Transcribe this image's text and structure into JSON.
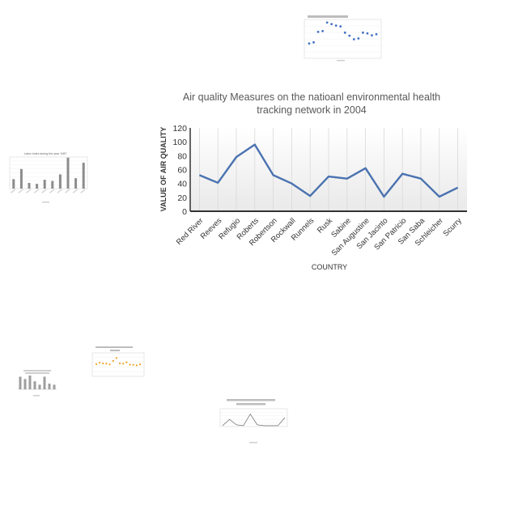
{
  "chart_data": [
    {
      "type": "line",
      "title": "Air quality Measures on the natioanl environmental health tracking network in 2004",
      "xlabel": "COUNTRY",
      "ylabel": "VALUE OF AIR QUALITY",
      "ylim": [
        0,
        120
      ],
      "yticks": [
        "0",
        "20",
        "40",
        "60",
        "80",
        "100",
        "120"
      ],
      "grid": "vertical",
      "categories": [
        "Red River",
        "Reeves",
        "Refugio",
        "Roberts",
        "Robertson",
        "Rockwall",
        "Runnels",
        "Rusk",
        "Sabine",
        "San Augustine",
        "San Jacinto",
        "San Patricio",
        "San Saba",
        "Schleicher",
        "Scurry"
      ],
      "series": [
        {
          "values": [
            52,
            41,
            78,
            96,
            52,
            40,
            22,
            50,
            47,
            62,
            21,
            54,
            47,
            21,
            34
          ],
          "color": "#4a72b0"
        }
      ]
    },
    {
      "type": "scatter",
      "values": [
        3.8,
        4.1,
        6.8,
        7.0,
        9.2,
        8.8,
        8.4,
        8.2,
        6.6,
        5.8,
        4.9,
        5.1,
        6.6,
        6.4,
        5.9,
        6.2
      ]
    },
    {
      "type": "bar",
      "title": "Labor index during the year 1987",
      "values": [
        30,
        62,
        18,
        15,
        28,
        24,
        45,
        98,
        33,
        82
      ]
    },
    {
      "type": "line",
      "values": [
        52,
        58,
        55,
        54,
        51,
        66,
        78,
        55,
        54,
        60,
        50,
        49,
        47,
        51
      ]
    },
    {
      "type": "bar",
      "values": [
        55,
        45,
        60,
        35,
        20,
        55,
        25,
        20
      ]
    },
    {
      "type": "line",
      "values": [
        5,
        40,
        10,
        5,
        70,
        10,
        5,
        5,
        5,
        50
      ]
    }
  ]
}
